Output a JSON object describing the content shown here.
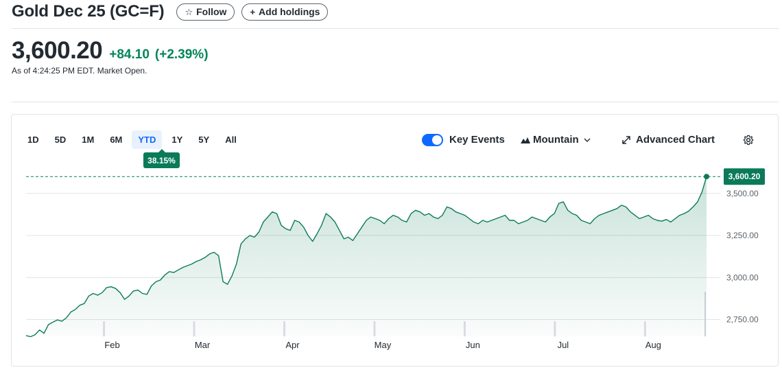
{
  "header": {
    "title": "Gold Dec 25 (GC=F)",
    "follow_label": "Follow",
    "add_holdings_label": "Add holdings"
  },
  "quote": {
    "price": "3,600.20",
    "change": "+84.10",
    "change_percent": "(+2.39%)",
    "as_of": "As of 4:24:25 PM EDT. Market Open.",
    "change_color": "#008557"
  },
  "chart_controls": {
    "ranges": [
      "1D",
      "5D",
      "1M",
      "6M",
      "YTD",
      "1Y",
      "5Y",
      "All"
    ],
    "active_range": "YTD",
    "range_return": "38.15%",
    "key_events_label": "Key Events",
    "key_events_on": true,
    "chart_type_label": "Mountain",
    "advanced_chart_label": "Advanced Chart"
  },
  "chart_data": {
    "type": "area",
    "title": "",
    "xlabel": "",
    "ylabel": "",
    "line_color": "#0a7a58",
    "x_ticks": [
      "Feb",
      "Mar",
      "Apr",
      "May",
      "Jun",
      "Jul",
      "Aug"
    ],
    "y_ticks": [
      "2,750.00",
      "3,000.00",
      "3,250.00",
      "3,500.00"
    ],
    "ylim": [
      2650,
      3650
    ],
    "last_value": 3600.2,
    "last_value_label": "3,600.20",
    "series": [
      {
        "values": [
          2655,
          2648,
          2660,
          2688,
          2668,
          2720,
          2735,
          2748,
          2740,
          2760,
          2795,
          2810,
          2835,
          2845,
          2890,
          2905,
          2895,
          2910,
          2940,
          2945,
          2935,
          2910,
          2870,
          2890,
          2920,
          2925,
          2905,
          2900,
          2950,
          2975,
          2985,
          3015,
          3035,
          3030,
          3045,
          3060,
          3070,
          3080,
          3095,
          3105,
          3120,
          3140,
          3150,
          3130,
          2975,
          2960,
          3010,
          3080,
          3200,
          3230,
          3250,
          3240,
          3270,
          3330,
          3360,
          3390,
          3380,
          3310,
          3290,
          3280,
          3340,
          3330,
          3300,
          3250,
          3215,
          3260,
          3310,
          3380,
          3360,
          3330,
          3280,
          3230,
          3240,
          3220,
          3260,
          3300,
          3340,
          3360,
          3350,
          3340,
          3320,
          3350,
          3370,
          3360,
          3340,
          3330,
          3380,
          3400,
          3390,
          3370,
          3380,
          3360,
          3350,
          3370,
          3420,
          3410,
          3390,
          3380,
          3370,
          3350,
          3330,
          3320,
          3340,
          3330,
          3340,
          3350,
          3360,
          3370,
          3340,
          3340,
          3320,
          3330,
          3340,
          3360,
          3350,
          3340,
          3330,
          3360,
          3380,
          3440,
          3450,
          3400,
          3380,
          3370,
          3340,
          3330,
          3320,
          3350,
          3370,
          3380,
          3390,
          3400,
          3410,
          3430,
          3420,
          3390,
          3370,
          3350,
          3360,
          3370,
          3350,
          3340,
          3335,
          3345,
          3330,
          3350,
          3370,
          3380,
          3395,
          3420,
          3450,
          3510,
          3600.2
        ]
      }
    ]
  }
}
